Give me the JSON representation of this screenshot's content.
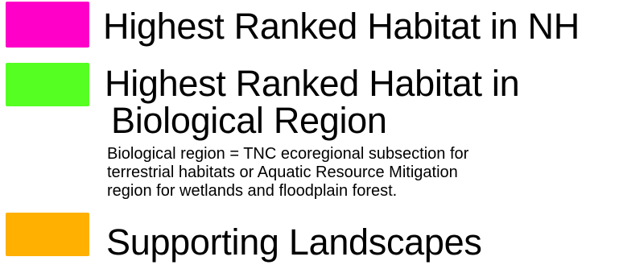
{
  "legend": {
    "items": [
      {
        "color": "#ff00c8",
        "label": "Highest Ranked Habitat in NH"
      },
      {
        "color": "#55ff22",
        "label_lines": [
          "Highest Ranked Habitat in",
          "Biological Region"
        ]
      },
      {
        "color": "#ffb000",
        "label": "Supporting Landscapes"
      }
    ],
    "note_lines": [
      "Biological region = TNC ecoregional subsection for",
      "terrestrial habitats or Aquatic Resource Mitigation",
      "region for wetlands and floodplain forest."
    ]
  }
}
